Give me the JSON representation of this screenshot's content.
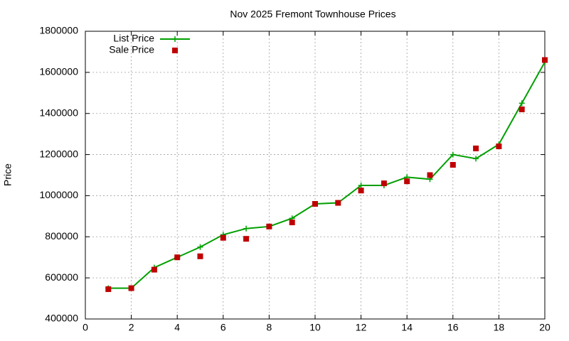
{
  "chart_data": {
    "type": "line",
    "title": "Nov 2025 Fremont Townhouse Prices",
    "y_label": "Price",
    "x": [
      1,
      2,
      3,
      4,
      5,
      6,
      7,
      8,
      9,
      10,
      11,
      12,
      13,
      14,
      15,
      16,
      17,
      18,
      19,
      20
    ],
    "series": [
      {
        "name": "List Price",
        "color": "#00a000",
        "line": true,
        "marker": "plus",
        "values": [
          550000,
          550000,
          650000,
          700000,
          750000,
          810000,
          840000,
          850000,
          890000,
          960000,
          965000,
          1050000,
          1050000,
          1090000,
          1080000,
          1200000,
          1180000,
          1250000,
          1450000,
          1650000
        ]
      },
      {
        "name": "Sale Price",
        "color": "#c00000",
        "line": false,
        "marker": "square",
        "values": [
          545000,
          550000,
          640000,
          700000,
          705000,
          795000,
          790000,
          850000,
          870000,
          960000,
          965000,
          1025000,
          1060000,
          1070000,
          1100000,
          1150000,
          1230000,
          1240000,
          1420000,
          1660000
        ]
      }
    ],
    "xlim": [
      0,
      20
    ],
    "xticks": [
      0,
      2,
      4,
      6,
      8,
      10,
      12,
      14,
      16,
      18,
      20
    ],
    "ylim": [
      400000,
      1800000
    ],
    "yticks": [
      400000,
      600000,
      800000,
      1000000,
      1200000,
      1400000,
      1600000,
      1800000
    ],
    "grid": true,
    "legend": "top-left"
  }
}
